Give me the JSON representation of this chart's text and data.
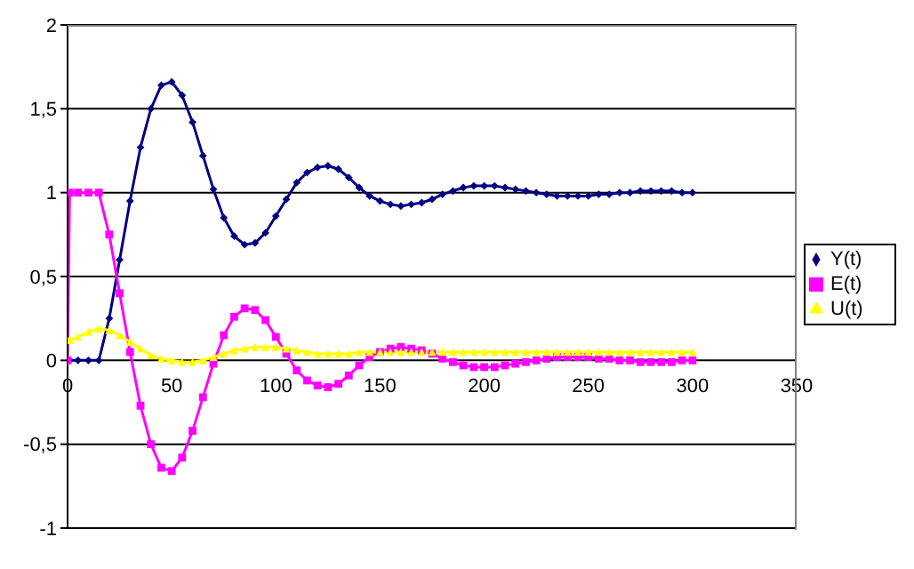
{
  "chart_data": {
    "type": "line",
    "x": [
      0,
      1,
      5,
      10,
      15,
      20,
      25,
      30,
      35,
      40,
      45,
      50,
      55,
      60,
      65,
      70,
      75,
      80,
      85,
      90,
      95,
      100,
      105,
      110,
      115,
      120,
      125,
      130,
      135,
      140,
      145,
      150,
      155,
      160,
      165,
      170,
      175,
      180,
      185,
      190,
      195,
      200,
      205,
      210,
      215,
      220,
      225,
      230,
      235,
      240,
      245,
      250,
      255,
      260,
      265,
      270,
      275,
      280,
      285,
      290,
      295,
      300
    ],
    "series": [
      {
        "name": "Y(t)",
        "color": "#000080",
        "marker": "diamond",
        "values": [
          0,
          0,
          0,
          0,
          0,
          0.25,
          0.6,
          0.95,
          1.27,
          1.5,
          1.64,
          1.66,
          1.58,
          1.42,
          1.22,
          1.02,
          0.85,
          0.74,
          0.69,
          0.7,
          0.76,
          0.86,
          0.96,
          1.06,
          1.12,
          1.15,
          1.16,
          1.14,
          1.09,
          1.03,
          0.98,
          0.95,
          0.93,
          0.92,
          0.93,
          0.94,
          0.96,
          0.99,
          1.01,
          1.03,
          1.04,
          1.04,
          1.04,
          1.03,
          1.02,
          1.01,
          1.0,
          0.99,
          0.98,
          0.98,
          0.98,
          0.98,
          0.99,
          0.99,
          1.0,
          1.0,
          1.01,
          1.01,
          1.01,
          1.01,
          1.0,
          1.0
        ]
      },
      {
        "name": "E(t)",
        "color": "#ff00ff",
        "marker": "square",
        "values": [
          0,
          1,
          1,
          1,
          1,
          0.75,
          0.4,
          0.05,
          -0.27,
          -0.5,
          -0.64,
          -0.66,
          -0.58,
          -0.42,
          -0.22,
          -0.02,
          0.15,
          0.26,
          0.31,
          0.3,
          0.24,
          0.14,
          0.04,
          -0.06,
          -0.12,
          -0.15,
          -0.16,
          -0.14,
          -0.09,
          -0.03,
          0.02,
          0.05,
          0.07,
          0.08,
          0.07,
          0.06,
          0.04,
          0.01,
          -0.01,
          -0.03,
          -0.04,
          -0.04,
          -0.04,
          -0.03,
          -0.02,
          -0.01,
          0.0,
          0.01,
          0.02,
          0.02,
          0.02,
          0.02,
          0.01,
          0.01,
          0.0,
          0.0,
          -0.01,
          -0.01,
          -0.01,
          -0.01,
          0.0,
          0.0
        ]
      },
      {
        "name": "U(t)",
        "color": "#ffff00",
        "marker": "triangle",
        "values": [
          0.12,
          0.12,
          0.14,
          0.17,
          0.19,
          0.18,
          0.15,
          0.11,
          0.07,
          0.03,
          0.01,
          0.0,
          -0.01,
          -0.01,
          0.0,
          0.02,
          0.04,
          0.06,
          0.07,
          0.08,
          0.08,
          0.08,
          0.07,
          0.06,
          0.05,
          0.04,
          0.04,
          0.04,
          0.04,
          0.05,
          0.05,
          0.05,
          0.05,
          0.05,
          0.05,
          0.05,
          0.05,
          0.05,
          0.05,
          0.05,
          0.05,
          0.05,
          0.05,
          0.05,
          0.05,
          0.05,
          0.05,
          0.05,
          0.05,
          0.05,
          0.05,
          0.05,
          0.05,
          0.05,
          0.05,
          0.05,
          0.05,
          0.05,
          0.05,
          0.05,
          0.05,
          0.05
        ]
      }
    ],
    "xlim": [
      0,
      350
    ],
    "xticks": [
      0,
      50,
      100,
      150,
      200,
      250,
      300,
      350
    ],
    "ylim": [
      -1,
      2
    ],
    "yticks": [
      -1,
      {
        "value": -0.5,
        "label": "-0,5"
      },
      0,
      {
        "value": 0.5,
        "label": "0,5"
      },
      1,
      {
        "value": 1.5,
        "label": "1,5"
      },
      2
    ],
    "grid": "y",
    "legend": "right",
    "line_style": "solid"
  }
}
